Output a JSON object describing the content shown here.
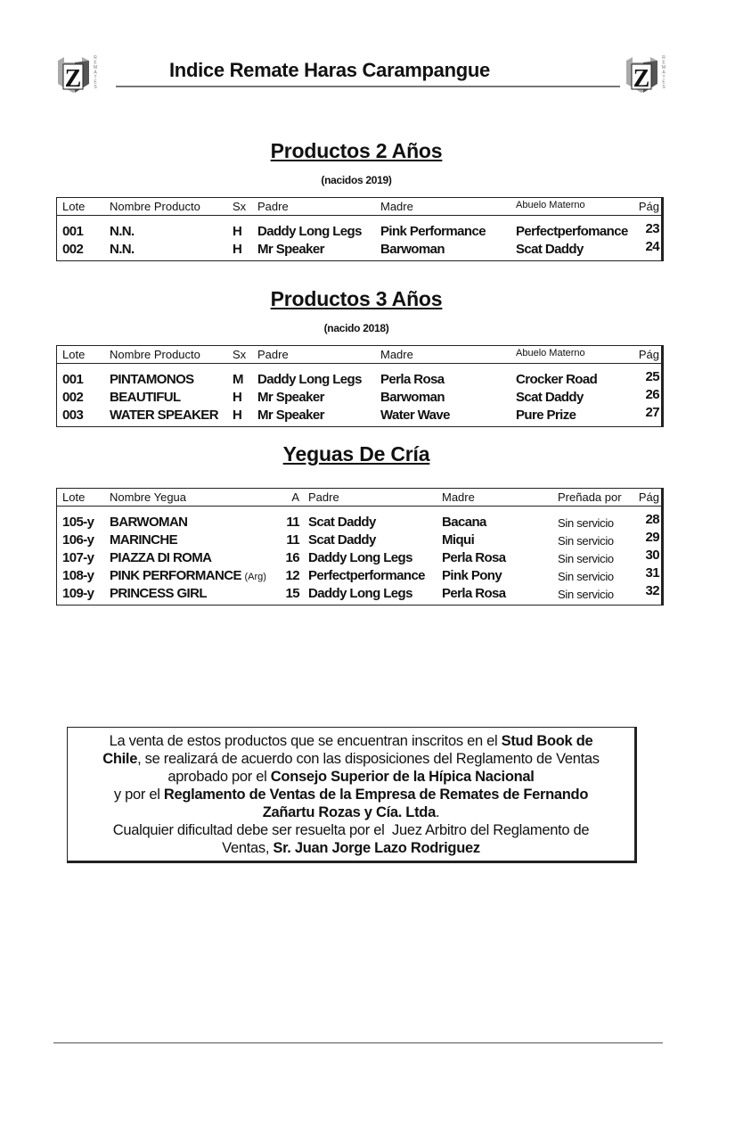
{
  "header": {
    "title": "Indice Remate Haras Carampangue",
    "logo_letter": "Z",
    "logo_side_text": "REMATES"
  },
  "sections": [
    {
      "title": "Productos 2 Años",
      "subtitle": "(nacidos 2019)",
      "columns": [
        "Lote",
        "Nombre Producto",
        "Sx",
        "Padre",
        "Madre",
        "Abuelo Materno",
        "Pág"
      ],
      "rows": [
        [
          "001",
          "N.N.",
          "H",
          "Daddy Long Legs",
          "Pink Performance",
          "Perfectperfomance",
          "23"
        ],
        [
          "002",
          "N.N.",
          "H",
          "Mr Speaker",
          "Barwoman",
          "Scat Daddy",
          "24"
        ]
      ]
    },
    {
      "title": "Productos 3 Años",
      "subtitle": "(nacido 2018)",
      "columns": [
        "Lote",
        "Nombre Producto",
        "Sx",
        "Padre",
        "Madre",
        "Abuelo Materno",
        "Pág"
      ],
      "rows": [
        [
          "001",
          "PINTAMONOS",
          "M",
          "Daddy Long Legs",
          "Perla Rosa",
          "Crocker Road",
          "25"
        ],
        [
          "002",
          "BEAUTIFUL",
          "H",
          "Mr Speaker",
          "Barwoman",
          "Scat Daddy",
          "26"
        ],
        [
          "003",
          "WATER SPEAKER",
          "H",
          "Mr Speaker",
          "Water Wave",
          "Pure Prize",
          "27"
        ]
      ]
    },
    {
      "title": "Yeguas De Cría",
      "subtitle": "",
      "columns": [
        "Lote",
        "Nombre Yegua",
        "A",
        "Padre",
        "Madre",
        "Preñada por",
        "Pág"
      ],
      "rows": [
        [
          "105-y",
          "BARWOMAN",
          "11",
          "Scat Daddy",
          "Bacana",
          "Sin servicio",
          "28"
        ],
        [
          "106-y",
          "MARINCHE",
          "11",
          "Scat Daddy",
          "Miqui",
          "Sin servicio",
          "29"
        ],
        [
          "107-y",
          "PIAZZA DI ROMA",
          "16",
          "Daddy Long Legs",
          "Perla Rosa",
          "Sin servicio",
          "30"
        ],
        [
          "108-y",
          "PINK PERFORMANCE",
          "12",
          "Perfectperformance",
          "Pink Pony",
          "Sin servicio",
          "31"
        ],
        [
          "109-y",
          "PRINCESS GIRL",
          "15",
          "Daddy Long Legs",
          "Perla Rosa",
          "Sin servicio",
          "32"
        ]
      ],
      "row_notes": {
        "3": "(Arg)"
      }
    }
  ],
  "notice": {
    "lines": [
      [
        {
          "t": "La venta de estos productos que se encuentran inscritos en el ",
          "b": false
        },
        {
          "t": "Stud Book de",
          "b": true
        }
      ],
      [
        {
          "t": "Chile",
          "b": true
        },
        {
          "t": ", se realizará de acuerdo con las disposiciones del Reglamento de Ventas",
          "b": false
        }
      ],
      [
        {
          "t": "aprobado por el ",
          "b": false
        },
        {
          "t": "Consejo Superior de la Hípica Nacional",
          "b": true
        }
      ],
      [
        {
          "t": "y por el ",
          "b": false
        },
        {
          "t": "Reglamento de Ventas de la Empresa de Remates de Fernando",
          "b": true
        }
      ],
      [
        {
          "t": "Zañartu Rozas y Cía. Ltda",
          "b": true
        },
        {
          "t": ".",
          "b": false
        }
      ],
      [
        {
          "t": "Cualquier dificultad debe ser resuelta por el  Juez Arbitro del Reglamento de",
          "b": false
        }
      ],
      [
        {
          "t": "Ventas, ",
          "b": false
        },
        {
          "t": "Sr. Juan Jorge Lazo Rodriguez",
          "b": true
        }
      ]
    ]
  }
}
